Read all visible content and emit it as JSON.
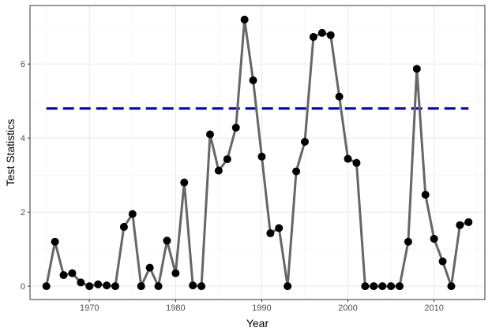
{
  "chart_data": {
    "type": "line",
    "xlabel": "Year",
    "ylabel": "Test Statistics",
    "xlim": [
      1963.1,
      2015.9
    ],
    "ylim": [
      -0.36,
      7.58
    ],
    "x_ticks": [
      1970,
      1980,
      1990,
      2000,
      2010
    ],
    "y_ticks": [
      0,
      2,
      4,
      6
    ],
    "x_tick_labels": [
      "1970",
      "1980",
      "1990",
      "2000",
      "2010"
    ],
    "y_tick_labels": [
      "0",
      "2",
      "4",
      "6"
    ],
    "grid": true,
    "legend": "none",
    "series": [
      {
        "style": "line+points",
        "line_color": "#666666",
        "point_color": "#000000",
        "x": [
          1965,
          1966,
          1967,
          1968,
          1969,
          1970,
          1971,
          1972,
          1973,
          1974,
          1975,
          1976,
          1977,
          1978,
          1979,
          1980,
          1981,
          1982,
          1983,
          1984,
          1985,
          1986,
          1987,
          1988,
          1989,
          1990,
          1991,
          1992,
          1993,
          1994,
          1995,
          1996,
          1997,
          1998,
          1999,
          2000,
          2001,
          2002,
          2003,
          2004,
          2005,
          2006,
          2007,
          2008,
          2009,
          2010,
          2011,
          2012,
          2013,
          2014
        ],
        "y": [
          0,
          1.2,
          0.3,
          0.35,
          0.1,
          0,
          0.05,
          0.02,
          0,
          1.6,
          1.95,
          0,
          0.5,
          0,
          1.23,
          0.35,
          2.8,
          0.02,
          0,
          4.1,
          3.12,
          3.43,
          4.28,
          7.2,
          5.56,
          3.5,
          1.43,
          1.57,
          0,
          3.1,
          3.9,
          6.73,
          6.84,
          6.78,
          5.12,
          3.44,
          3.33,
          0,
          0,
          0,
          0,
          0,
          1.2,
          5.87,
          2.47,
          1.28,
          0.67,
          0,
          1.65,
          1.73
        ]
      }
    ],
    "threshold": {
      "y": 4.8,
      "x_start": 1965,
      "x_end": 2014,
      "color": "#0000cc",
      "style": "dashed"
    }
  }
}
